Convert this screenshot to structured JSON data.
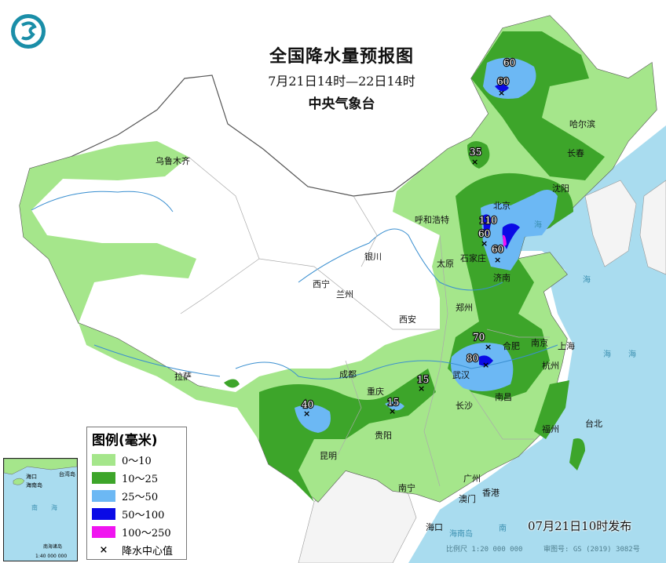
{
  "title": {
    "main": "全国降水量预报图",
    "period": "7月21日14时—22日14时",
    "issuer": "中央气象台"
  },
  "legend": {
    "title": "图例(毫米)",
    "items": [
      {
        "label": "0～10",
        "color": "#a5e68b"
      },
      {
        "label": "10～25",
        "color": "#3da52a"
      },
      {
        "label": "25～50",
        "color": "#6cb8f4"
      },
      {
        "label": "50～100",
        "color": "#0a0ae6"
      },
      {
        "label": "100～250",
        "color": "#f014f0"
      }
    ],
    "center_marker": "降水中心值"
  },
  "cities": [
    "乌鲁木齐",
    "哈尔滨",
    "长春",
    "沈阳",
    "呼和浩特",
    "北京",
    "石家庄",
    "太原",
    "济南",
    "银川",
    "西宁",
    "兰州",
    "西安",
    "郑州",
    "南京",
    "上海",
    "合肥",
    "武汉",
    "杭州",
    "南昌",
    "长沙",
    "福州",
    "台北",
    "成都",
    "重庆",
    "贵阳",
    "昆明",
    "拉萨",
    "南宁",
    "广州",
    "香港",
    "澳门",
    "海口"
  ],
  "rain_centers": [
    "60",
    "60",
    "35",
    "110",
    "60",
    "60",
    "70",
    "80",
    "15",
    "15",
    "40"
  ],
  "sea_labels": [
    "海",
    "海",
    "海",
    "海",
    "南",
    "海南岛"
  ],
  "inset": {
    "labels": [
      "海口",
      "海南岛",
      "台湾岛",
      "南",
      "海",
      "南海诸岛"
    ],
    "scale": "1:40 000 000"
  },
  "footer": {
    "issued": "07月21日10时发布",
    "scale": "比例尺 1:20 000 000",
    "review_no": "审图号: GS (2019) 3082号"
  },
  "colors": {
    "sea": "#a9dcef",
    "land_outside": "#f4f4f4",
    "border": "#888888"
  }
}
